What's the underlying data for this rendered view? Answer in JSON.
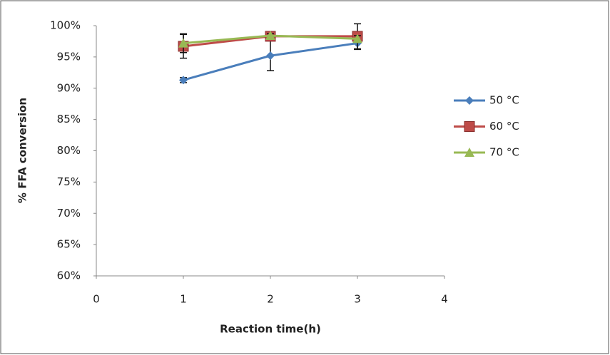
{
  "chart_data": {
    "type": "line",
    "x_label": "Reaction time(h)",
    "y_label": "% FFA conversion",
    "xlim": [
      0,
      4
    ],
    "xticks": [
      0,
      1,
      2,
      3,
      4
    ],
    "ylim": [
      60,
      100
    ],
    "yticks": [
      {
        "value": 60,
        "label": "60%"
      },
      {
        "value": 65,
        "label": "65%"
      },
      {
        "value": 70,
        "label": "70%"
      },
      {
        "value": 75,
        "label": "75%"
      },
      {
        "value": 80,
        "label": "80%"
      },
      {
        "value": 85,
        "label": "85%"
      },
      {
        "value": 90,
        "label": "90%"
      },
      {
        "value": 95,
        "label": "95%"
      },
      {
        "value": 100,
        "label": "100%"
      }
    ],
    "x": [
      1,
      2,
      3
    ],
    "legend": "right",
    "series": [
      {
        "name": "50 °C",
        "color": "#4a7ebb",
        "marker": "diamond",
        "values": [
          91.3,
          95.2,
          97.2
        ],
        "errors": [
          0.4,
          2.4,
          1.0
        ]
      },
      {
        "name": "60 °C",
        "color": "#be4b48",
        "marker": "square",
        "values": [
          96.7,
          98.3,
          98.3
        ],
        "errors": [
          1.9,
          0.3,
          2.0
        ]
      },
      {
        "name": "70 °C",
        "color": "#98b954",
        "marker": "triangle",
        "values": [
          97.2,
          98.4,
          97.9
        ],
        "errors": [
          1.5,
          0.3,
          0.5
        ]
      }
    ]
  }
}
